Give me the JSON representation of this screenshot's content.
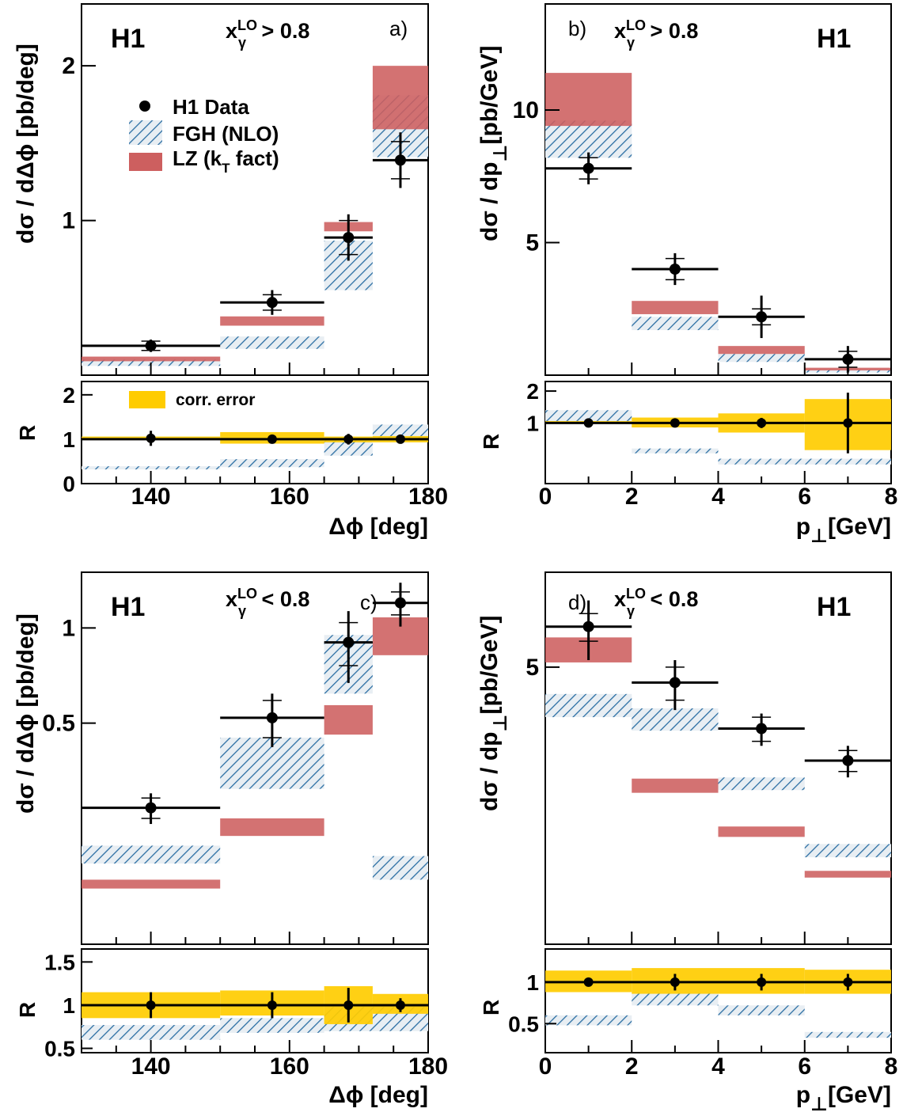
{
  "figure": {
    "colors": {
      "data": "#000000",
      "fgh": "#2b6ea3",
      "fgh_bg": "#e8eef3",
      "lz": "#cd5f5f",
      "corr": "#ffcc00"
    },
    "legend": {
      "data_label": "H1 Data",
      "fgh_label": "FGH (NLO)",
      "lz_label": "LZ (k",
      "lz_sub": "T",
      "lz_label_end": " fact)",
      "corr_label": "corr. error"
    },
    "text": {
      "h1": "H1",
      "x_main": "x",
      "x_sup": "LO",
      "x_sub": "γ",
      "gt": " > 0.8",
      "lt": " < 0.8",
      "a": "a)",
      "b": "b)",
      "c": "c)",
      "d": "d)",
      "ylabel_phi": "dσ / dΔϕ [pb/deg]",
      "ylabel_pt_main": "dσ / dp",
      "ylabel_pt_sub": "⊥",
      "ylabel_pt_end": "[pb/GeV]",
      "ratio_label": "R",
      "xlabel_phi": "Δϕ [deg]",
      "xlabel_pt_main": "p",
      "xlabel_pt_sub": "⊥",
      "xlabel_pt_end": "[GeV]"
    }
  },
  "chart_data": [
    {
      "id": "a",
      "type": "bar",
      "title": "H1",
      "cut": "x_γ^LO > 0.8",
      "panel_label": "a)",
      "xlabel": "Δϕ [deg]",
      "ylabel": "dσ / dΔϕ [pb/deg]",
      "xlim": [
        130,
        180
      ],
      "ylim": [
        0,
        2.4
      ],
      "log_y": false,
      "yticks": [
        1,
        2
      ],
      "bins": [
        [
          130,
          150
        ],
        [
          150,
          165
        ],
        [
          165,
          172
        ],
        [
          172,
          180
        ]
      ],
      "data": [
        {
          "x": 140,
          "y": 0.19,
          "stat": 0.03,
          "tot": 0.04
        },
        {
          "x": 157.5,
          "y": 0.47,
          "stat": 0.05,
          "tot": 0.08
        },
        {
          "x": 168.5,
          "y": 0.89,
          "stat": 0.11,
          "tot": 0.15
        },
        {
          "x": 176,
          "y": 1.39,
          "stat": 0.12,
          "tot": 0.18
        }
      ],
      "fgh": [
        [
          0.06,
          0.1
        ],
        [
          0.17,
          0.25
        ],
        [
          0.55,
          0.87
        ],
        [
          1.41,
          1.81
        ]
      ],
      "lz": [
        [
          0.09,
          0.12
        ],
        [
          0.32,
          0.38
        ],
        [
          0.93,
          0.99
        ],
        [
          1.59,
          2.0
        ]
      ],
      "ratio": {
        "ylim": [
          0,
          2.3
        ],
        "yticks": [
          0,
          1,
          2
        ],
        "data": [
          {
            "x": 140,
            "y": 1.02,
            "stat": 0.1,
            "tot": 0.17
          },
          {
            "x": 157.5,
            "y": 1.0,
            "stat": 0.06,
            "tot": 0.06
          },
          {
            "x": 168.5,
            "y": 1.0,
            "stat": 0.08,
            "tot": 0.12
          },
          {
            "x": 176,
            "y": 1.0,
            "stat": 0.06,
            "tot": 0.06
          }
        ],
        "corr": [
          [
            0.98,
            1.06
          ],
          [
            0.9,
            1.16
          ],
          [
            0.93,
            1.06
          ],
          [
            0.93,
            1.07
          ]
        ],
        "fgh": [
          [
            0.32,
            0.39
          ],
          [
            0.37,
            0.55
          ],
          [
            0.63,
            1.02
          ],
          [
            1.0,
            1.33
          ]
        ]
      },
      "x_ticks": [
        140,
        160,
        180
      ]
    },
    {
      "id": "b",
      "type": "bar",
      "title": "H1",
      "cut": "x_γ^LO > 0.8",
      "panel_label": "b)",
      "xlabel": "p⊥[GeV]",
      "ylabel": "dσ / dp⊥[pb/GeV]",
      "xlim": [
        0,
        8
      ],
      "ylim": [
        0,
        14
      ],
      "log_y": false,
      "yticks": [
        5,
        10
      ],
      "bins": [
        [
          0,
          2
        ],
        [
          2,
          4
        ],
        [
          4,
          6
        ],
        [
          6,
          8
        ]
      ],
      "data": [
        {
          "x": 1,
          "y": 7.8,
          "stat": 0.4,
          "tot": 0.6
        },
        {
          "x": 3,
          "y": 4.0,
          "stat": 0.4,
          "tot": 0.6
        },
        {
          "x": 5,
          "y": 2.2,
          "stat": 0.3,
          "tot": 0.8
        },
        {
          "x": 7,
          "y": 0.6,
          "stat": 0.3,
          "tot": 0.5
        }
      ],
      "fgh": [
        [
          8.2,
          9.6
        ],
        [
          1.7,
          2.2
        ],
        [
          0.5,
          0.8
        ],
        [
          0.1,
          0.2
        ]
      ],
      "lz": [
        [
          9.4,
          11.4
        ],
        [
          2.3,
          2.8
        ],
        [
          0.8,
          1.1
        ],
        [
          0.18,
          0.28
        ]
      ],
      "ratio": {
        "ylim": [
          -0.9,
          2.3
        ],
        "yticks": [
          1,
          2
        ],
        "data": [
          {
            "x": 1,
            "y": 1.0,
            "stat": 0.02,
            "tot": 0.04
          },
          {
            "x": 3,
            "y": 1.0,
            "stat": 0.02,
            "tot": 0.04
          },
          {
            "x": 5,
            "y": 1.0,
            "stat": 0.16,
            "tot": 0.16
          },
          {
            "x": 7,
            "y": 1.0,
            "stat": 0.95,
            "tot": 0.95
          }
        ],
        "corr": [
          [
            0.99,
            1.06
          ],
          [
            0.86,
            1.17
          ],
          [
            0.7,
            1.3
          ],
          [
            0.15,
            1.75
          ]
        ],
        "fgh": [
          [
            1.06,
            1.4
          ],
          [
            0.05,
            0.2
          ],
          [
            -0.3,
            -0.12
          ],
          [
            -0.3,
            -0.12
          ]
        ]
      },
      "x_ticks": [
        0,
        2,
        4,
        6,
        8
      ]
    },
    {
      "id": "c",
      "type": "bar",
      "title": "H1",
      "cut": "x_γ^LO < 0.8",
      "panel_label": "c)",
      "xlabel": "Δϕ [deg]",
      "ylabel": "dσ / dΔϕ [pb/deg]",
      "xlim": [
        130,
        180
      ],
      "ylim": [
        0.1,
        1.5
      ],
      "log_y": true,
      "yticks": [
        0.5,
        1
      ],
      "bins": [
        [
          130,
          150
        ],
        [
          150,
          165
        ],
        [
          165,
          172
        ],
        [
          172,
          180
        ]
      ],
      "data": [
        {
          "x": 140,
          "y": 0.27,
          "stat": 0.02,
          "tot": 0.03
        },
        {
          "x": 157.5,
          "y": 0.52,
          "stat": 0.07,
          "tot": 0.1
        },
        {
          "x": 168.5,
          "y": 0.9,
          "stat": 0.14,
          "tot": 0.23
        },
        {
          "x": 176,
          "y": 1.2,
          "stat": 0.1,
          "tot": 0.19
        }
      ],
      "fgh": [
        [
          0.18,
          0.205
        ],
        [
          0.31,
          0.45
        ],
        [
          0.62,
          0.95
        ],
        [
          0.16,
          0.19
        ]
      ],
      "lz": [
        [
          0.15,
          0.16
        ],
        [
          0.22,
          0.25
        ],
        [
          0.46,
          0.57
        ],
        [
          0.82,
          1.08
        ]
      ],
      "ratio": {
        "ylim": [
          0.45,
          1.65
        ],
        "yticks": [
          0.5,
          1,
          1.5
        ],
        "data": [
          {
            "x": 140,
            "y": 1.0,
            "stat": 0.1,
            "tot": 0.15
          },
          {
            "x": 157.5,
            "y": 1.0,
            "stat": 0.1,
            "tot": 0.15
          },
          {
            "x": 168.5,
            "y": 1.0,
            "stat": 0.1,
            "tot": 0.2
          },
          {
            "x": 176,
            "y": 1.0,
            "stat": 0.06,
            "tot": 0.08
          }
        ],
        "corr": [
          [
            0.85,
            1.15
          ],
          [
            0.88,
            1.17
          ],
          [
            0.78,
            1.22
          ],
          [
            0.9,
            1.13
          ]
        ],
        "fgh": [
          [
            0.6,
            0.77
          ],
          [
            0.68,
            0.85
          ],
          [
            0.7,
            0.98
          ],
          [
            0.7,
            0.98
          ]
        ]
      },
      "x_ticks": [
        140,
        160,
        180
      ]
    },
    {
      "id": "d",
      "type": "bar",
      "title": "H1",
      "cut": "x_γ^LO < 0.8",
      "panel_label": "d)",
      "xlabel": "p⊥[GeV]",
      "ylabel": "dσ / dp⊥[pb/GeV]",
      "xlim": [
        0,
        8
      ],
      "ylim": [
        0.5,
        11
      ],
      "log_y": true,
      "yticks": [
        5
      ],
      "bins": [
        [
          0,
          2
        ],
        [
          2,
          4
        ],
        [
          4,
          6
        ],
        [
          6,
          8
        ]
      ],
      "data": [
        {
          "x": 1,
          "y": 7.0,
          "stat": 0.8,
          "tot": 1.7
        },
        {
          "x": 3,
          "y": 4.4,
          "stat": 0.6,
          "tot": 0.9
        },
        {
          "x": 5,
          "y": 3.0,
          "stat": 0.3,
          "tot": 0.4
        },
        {
          "x": 7,
          "y": 2.3,
          "stat": 0.2,
          "tot": 0.3
        }
      ],
      "fgh": [
        [
          3.3,
          4.0
        ],
        [
          2.95,
          3.55
        ],
        [
          1.8,
          2.0
        ],
        [
          1.03,
          1.15
        ]
      ],
      "lz": [
        [
          5.2,
          6.4
        ],
        [
          1.76,
          1.98
        ],
        [
          1.22,
          1.33
        ],
        [
          0.87,
          0.92
        ]
      ],
      "ratio": {
        "ylim": [
          0.15,
          1.4
        ],
        "yticks": [
          0.5,
          1
        ],
        "data": [
          {
            "x": 1,
            "y": 1.0,
            "stat": 0.02,
            "tot": 0.02
          },
          {
            "x": 3,
            "y": 1.0,
            "stat": 0.07,
            "tot": 0.1
          },
          {
            "x": 5,
            "y": 1.0,
            "stat": 0.07,
            "tot": 0.1
          },
          {
            "x": 7,
            "y": 1.0,
            "stat": 0.07,
            "tot": 0.1
          }
        ],
        "corr": [
          [
            0.88,
            1.14
          ],
          [
            0.86,
            1.17
          ],
          [
            0.86,
            1.17
          ],
          [
            0.86,
            1.15
          ]
        ],
        "fgh": [
          [
            0.48,
            0.6
          ],
          [
            0.72,
            0.87
          ],
          [
            0.6,
            0.72
          ],
          [
            0.33,
            0.4
          ]
        ]
      },
      "x_ticks": [
        0,
        2,
        4,
        6,
        8
      ]
    }
  ]
}
